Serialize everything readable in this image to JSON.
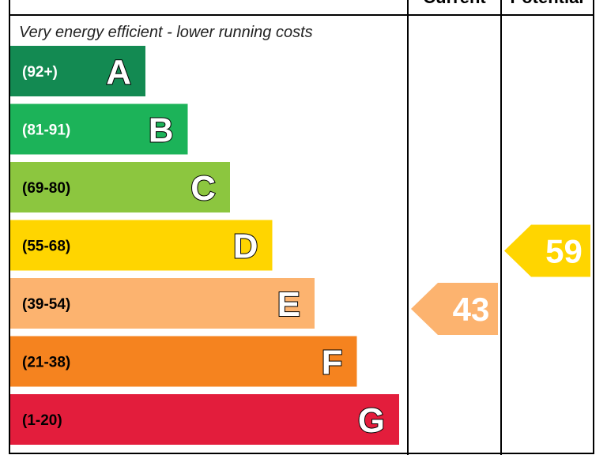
{
  "chart_data": {
    "type": "bar",
    "title": "",
    "top_note": "Very energy efficient - lower running costs",
    "columns": [
      "Current",
      "Potential"
    ],
    "categories": [
      "A",
      "B",
      "C",
      "D",
      "E",
      "F",
      "G"
    ],
    "bands": [
      {
        "letter": "A",
        "range": "(92+)",
        "min": 92,
        "max": 100,
        "color": "#138a52",
        "text_color": "#ffffff"
      },
      {
        "letter": "B",
        "range": "(81-91)",
        "min": 81,
        "max": 91,
        "color": "#1cb359",
        "text_color": "#ffffff"
      },
      {
        "letter": "C",
        "range": "(69-80)",
        "min": 69,
        "max": 80,
        "color": "#8cc63f",
        "text_color": "#000000"
      },
      {
        "letter": "D",
        "range": "(55-68)",
        "min": 55,
        "max": 68,
        "color": "#ffd500",
        "text_color": "#000000"
      },
      {
        "letter": "E",
        "range": "(39-54)",
        "min": 39,
        "max": 54,
        "color": "#fcb36f",
        "text_color": "#000000"
      },
      {
        "letter": "F",
        "range": "(21-38)",
        "min": 21,
        "max": 38,
        "color": "#f5831f",
        "text_color": "#000000"
      },
      {
        "letter": "G",
        "range": "(1-20)",
        "min": 1,
        "max": 20,
        "color": "#e31d3c",
        "text_color": "#000000"
      }
    ],
    "current": {
      "value": 43,
      "band": "E",
      "color": "#fcb36f"
    },
    "potential": {
      "value": 59,
      "band": "D",
      "color": "#ffd500"
    }
  }
}
